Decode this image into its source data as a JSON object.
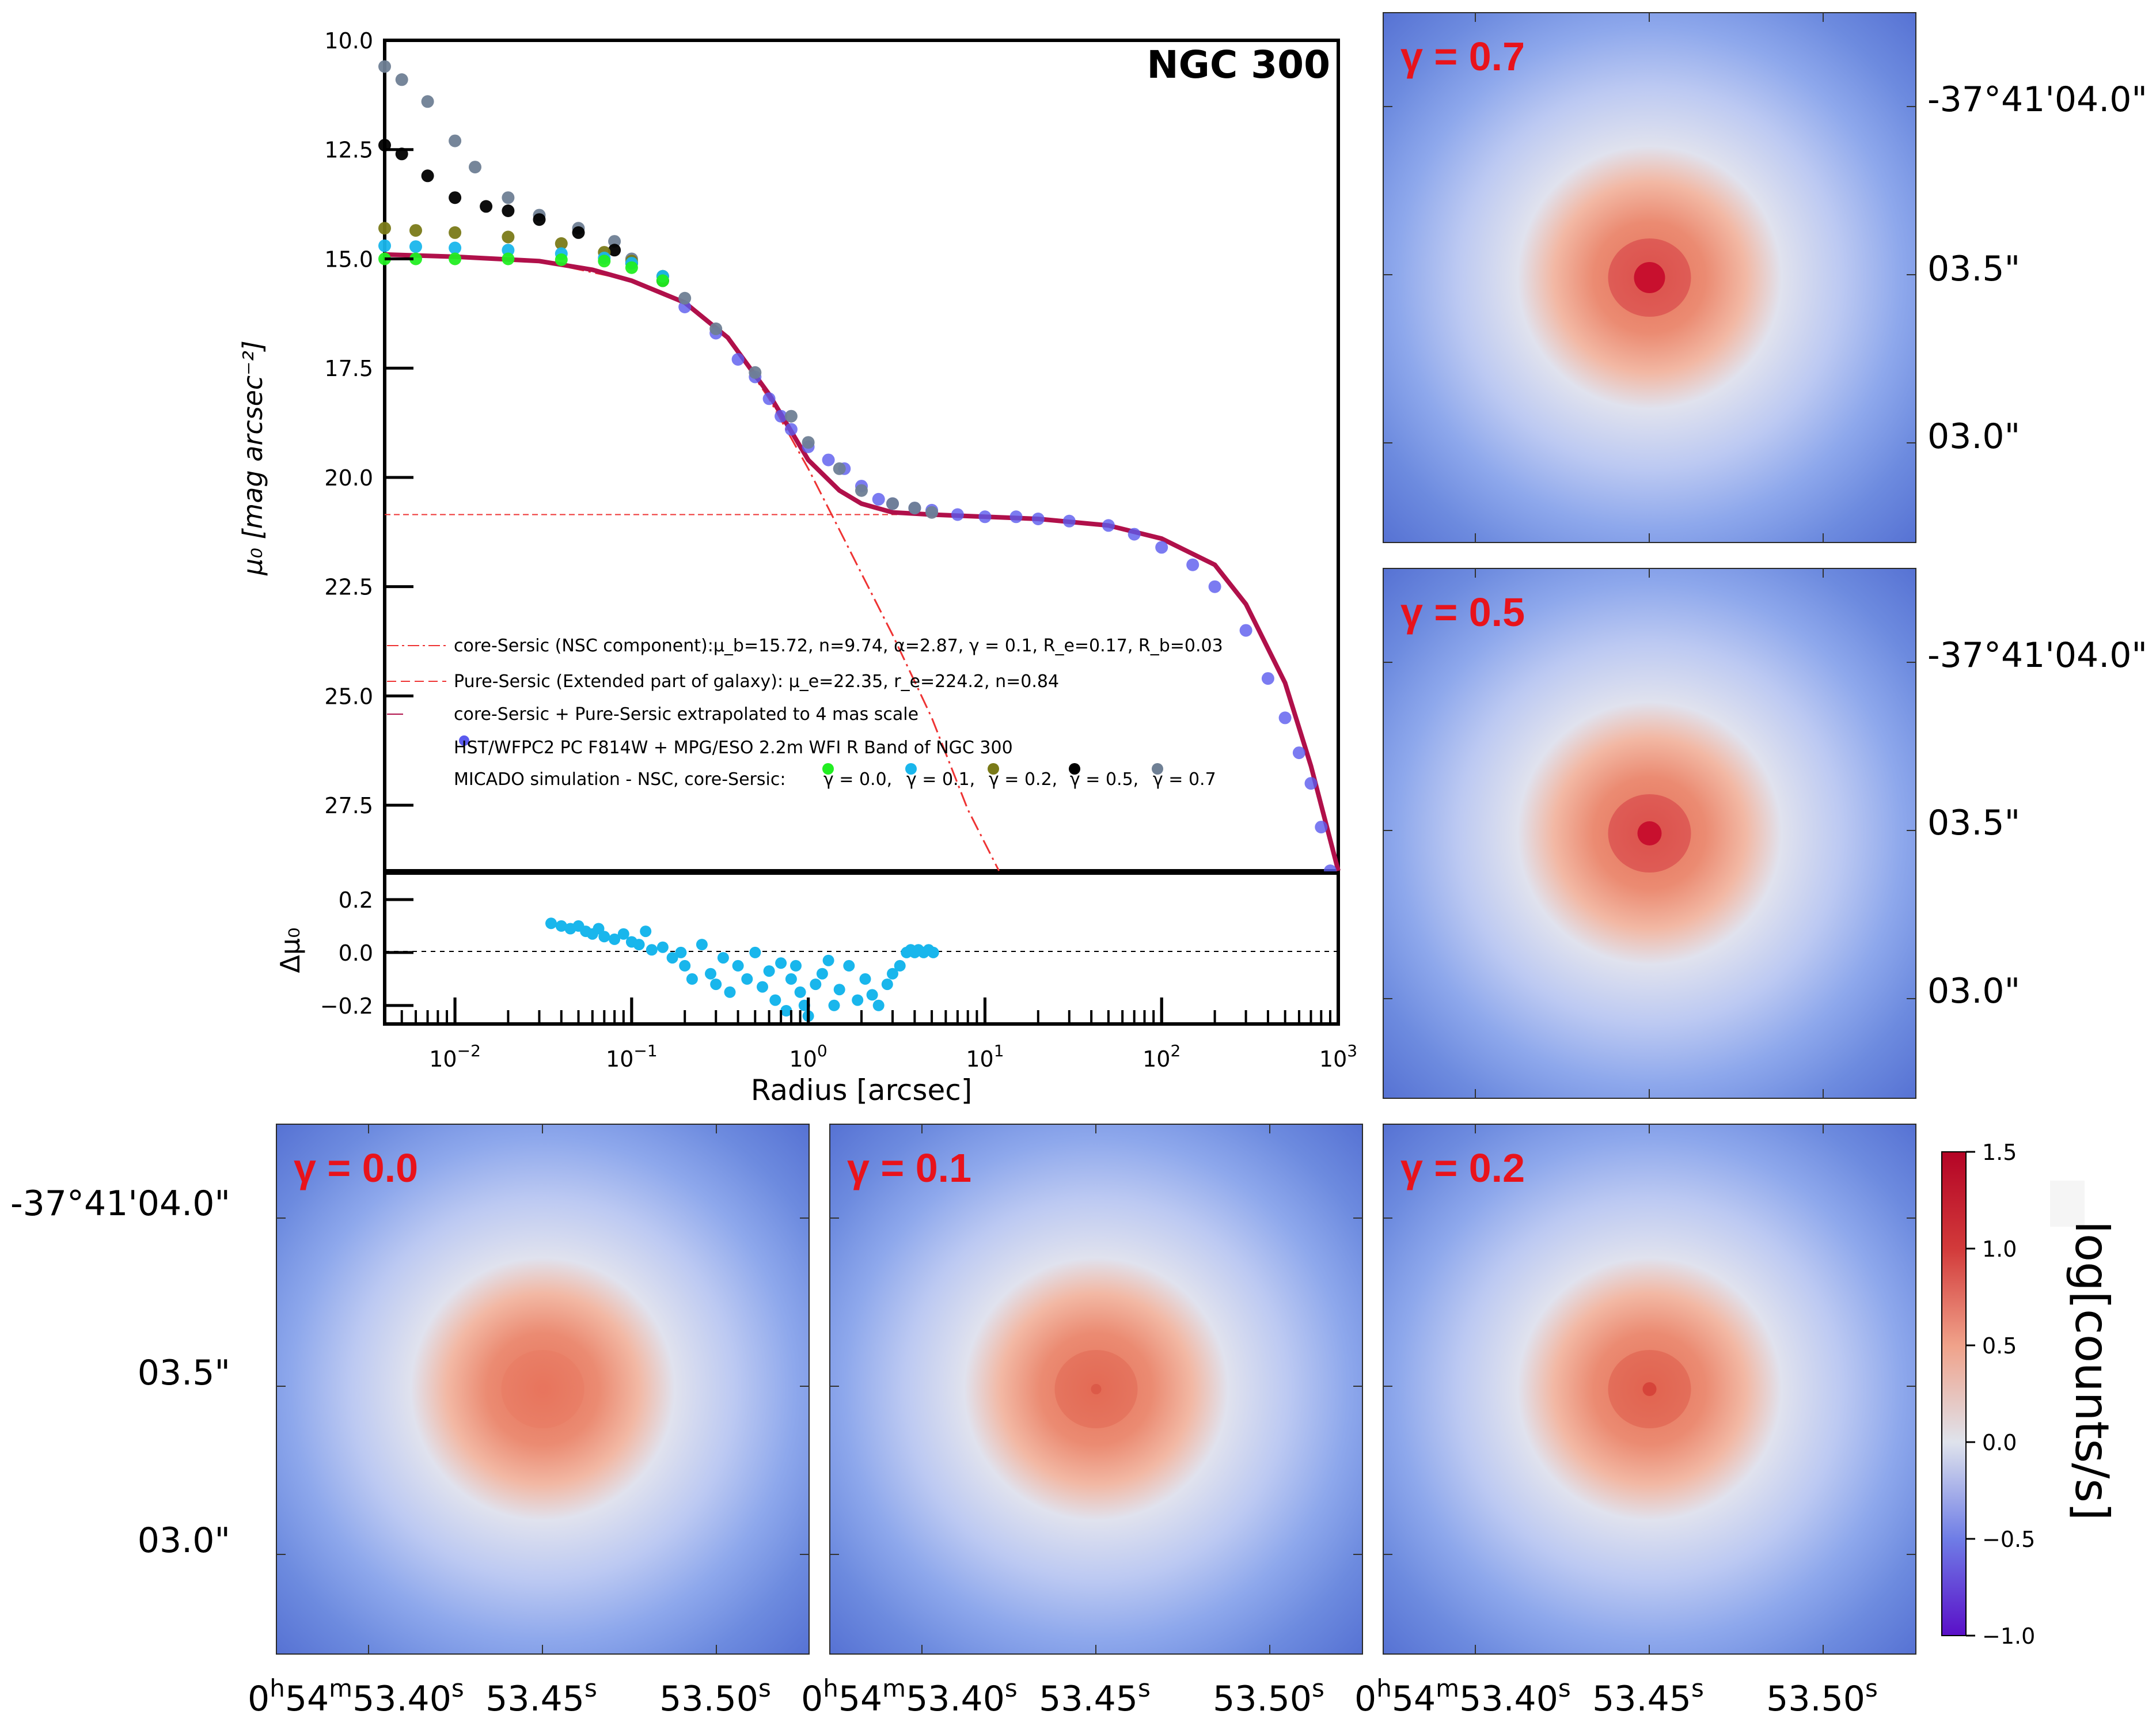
{
  "figure": {
    "galaxy_label": "NGC 300",
    "colorbar": {
      "label": "log[counts/s]",
      "ticks": [
        "1.5",
        "1.0",
        "0.5",
        "0.0",
        "−0.5",
        "−1.0"
      ],
      "colors": [
        "#5a0fc8",
        "#6f7de6",
        "#dfe3ec",
        "#f09a80",
        "#d11231",
        "#b40426"
      ]
    },
    "coords": {
      "dec_labels": [
        "-37°41'04.0\"",
        "03.5\"",
        "03.0\""
      ],
      "ra_prefix": "0",
      "ra_h": "h",
      "ra_mid": "54",
      "ra_m": "m",
      "ra_first": "53.40",
      "ra_labels": [
        "53.45",
        "53.50"
      ],
      "ra_s": "s"
    },
    "panels": [
      {
        "label": "γ = 0.7",
        "gamma": 0.7,
        "core_color": "#c8102e"
      },
      {
        "label": "γ = 0.5",
        "gamma": 0.5,
        "core_color": "#c8102e"
      },
      {
        "label": "γ = 0.0",
        "gamma": 0.0,
        "core_color": "#e8755e"
      },
      {
        "label": "γ = 0.1",
        "gamma": 0.1,
        "core_color": "#dc5a48"
      },
      {
        "label": "γ = 0.2",
        "gamma": 0.2,
        "core_color": "#d6443a"
      }
    ]
  },
  "chart_data": {
    "type": "scatter",
    "title": "NGC 300",
    "xlabel": "Radius [arcsec]",
    "ylabel": "μ₀ [mag arcsec⁻²]",
    "x_scale": "log",
    "xlim": [
      0.004,
      1000
    ],
    "ylim": [
      29,
      10
    ],
    "y_ticks": [
      "10.0",
      "12.5",
      "15.0",
      "17.5",
      "20.0",
      "22.5",
      "25.0",
      "27.5"
    ],
    "x_tick_labels": [
      {
        "base": "10",
        "exp": "−2",
        "value": 0.01
      },
      {
        "base": "10",
        "exp": "−1",
        "value": 0.1
      },
      {
        "base": "10",
        "exp": "0",
        "value": 1
      },
      {
        "base": "10",
        "exp": "1",
        "value": 10
      },
      {
        "base": "10",
        "exp": "2",
        "value": 100
      },
      {
        "base": "10",
        "exp": "3",
        "value": 1000
      }
    ],
    "model_profile": {
      "x": [
        0.004,
        0.01,
        0.03,
        0.06,
        0.1,
        0.2,
        0.35,
        0.6,
        1,
        1.5,
        2,
        3,
        5,
        10,
        20,
        50,
        100,
        200,
        300,
        500,
        700,
        1000
      ],
      "y": [
        14.9,
        14.95,
        15.05,
        15.25,
        15.5,
        16.0,
        16.8,
        18.1,
        19.6,
        20.3,
        20.6,
        20.8,
        20.85,
        20.9,
        20.95,
        21.1,
        21.4,
        22.0,
        22.9,
        24.7,
        26.6,
        29.0
      ]
    },
    "core_sersic_component": {
      "x": [
        0.004,
        0.01,
        0.03,
        0.1,
        0.2,
        0.35,
        0.6,
        1,
        1.5,
        2,
        3,
        5,
        8,
        12
      ],
      "y": [
        14.9,
        14.95,
        15.05,
        15.5,
        16.0,
        16.8,
        18.2,
        19.8,
        21.2,
        22.2,
        23.6,
        25.5,
        27.6,
        29.0
      ]
    },
    "pure_sersic_level": 20.85,
    "series": [
      {
        "name": "HST/WFPC2 PC F814W + MPG/ESO 2.2m WFI R Band of NGC 300",
        "color": "#5a5aee",
        "x": [
          0.2,
          0.3,
          0.4,
          0.5,
          0.6,
          0.7,
          0.8,
          1,
          1.3,
          1.6,
          2,
          2.5,
          3,
          4,
          5,
          7,
          10,
          15,
          20,
          30,
          50,
          70,
          100,
          150,
          200,
          300,
          400,
          500,
          600,
          700,
          800,
          900
        ],
        "y": [
          16.1,
          16.7,
          17.3,
          17.7,
          18.2,
          18.6,
          18.9,
          19.3,
          19.6,
          19.8,
          20.2,
          20.5,
          20.6,
          20.7,
          20.75,
          20.85,
          20.9,
          20.9,
          20.95,
          21.0,
          21.1,
          21.3,
          21.6,
          22.0,
          22.5,
          23.5,
          24.6,
          25.5,
          26.3,
          27.0,
          28.0,
          29.0
        ]
      },
      {
        "name": "γ = 0.0",
        "color": "#22ee22",
        "x": [
          0.004,
          0.006,
          0.01,
          0.02,
          0.04,
          0.07,
          0.1,
          0.15
        ],
        "y": [
          15.0,
          15.0,
          15.0,
          15.0,
          15.02,
          15.05,
          15.2,
          15.5
        ]
      },
      {
        "name": "γ = 0.1",
        "color": "#19b6ec",
        "x": [
          0.004,
          0.006,
          0.01,
          0.02,
          0.04,
          0.07,
          0.1,
          0.15
        ],
        "y": [
          14.7,
          14.72,
          14.75,
          14.8,
          14.88,
          14.98,
          15.1,
          15.4
        ]
      },
      {
        "name": "γ = 0.2",
        "color": "#7a7a18",
        "x": [
          0.004,
          0.006,
          0.01,
          0.02,
          0.04,
          0.07,
          0.1,
          0.15
        ],
        "y": [
          14.3,
          14.35,
          14.4,
          14.5,
          14.65,
          14.85,
          15.05,
          15.4
        ]
      },
      {
        "name": "γ = 0.5",
        "color": "#000000",
        "x": [
          0.004,
          0.005,
          0.007,
          0.01,
          0.015,
          0.02,
          0.03,
          0.05,
          0.08,
          0.1,
          0.15
        ],
        "y": [
          12.4,
          12.6,
          13.1,
          13.6,
          13.8,
          13.9,
          14.1,
          14.4,
          14.8,
          15.1,
          15.5
        ]
      },
      {
        "name": "γ = 0.7",
        "color": "#6f8095",
        "x": [
          0.004,
          0.005,
          0.007,
          0.01,
          0.013,
          0.02,
          0.03,
          0.05,
          0.08,
          0.1,
          0.15,
          0.2,
          0.3,
          0.5,
          0.8,
          1,
          1.5,
          2,
          3,
          4,
          5
        ],
        "y": [
          10.6,
          10.9,
          11.4,
          12.3,
          12.9,
          13.6,
          14.0,
          14.3,
          14.6,
          15.0,
          15.4,
          15.9,
          16.6,
          17.6,
          18.6,
          19.2,
          19.8,
          20.3,
          20.6,
          20.7,
          20.8
        ]
      }
    ],
    "legend": [
      {
        "style": "dashdot",
        "color": "#ee3333",
        "text": "core-Sersic (NSC component):μ_b=15.72, n=9.74, α=2.87, γ = 0.1, R_e=0.17, R_b=0.03"
      },
      {
        "style": "dashed",
        "color": "#ee3333",
        "text": "Pure-Sersic (Extended part of galaxy): μ_e=22.35, r_e=224.2, n=0.84"
      },
      {
        "style": "solid",
        "color": "#b0104a",
        "text": "core-Sersic + Pure-Sersic extrapolated to 4 mas scale"
      },
      {
        "style": "dot",
        "color": "#5a5aee",
        "text": "HST/WFPC2 PC F814W + MPG/ESO 2.2m WFI R Band of NGC 300"
      },
      {
        "style": "dots",
        "color": "",
        "text": "MICADO simulation - NSC, core-Sersic:"
      }
    ],
    "legend_gamma": [
      {
        "text": "γ = 0.0,",
        "color": "#22ee22"
      },
      {
        "text": "γ = 0.1,",
        "color": "#19b6ec"
      },
      {
        "text": "γ = 0.2,",
        "color": "#7a7a18"
      },
      {
        "text": "γ = 0.5,",
        "color": "#000000"
      },
      {
        "text": "γ = 0.7",
        "color": "#6f8095"
      }
    ],
    "residual": {
      "ylabel": "Δμ₀",
      "ylim": [
        -0.27,
        0.3
      ],
      "y_ticks": [
        "0.2",
        "0.0",
        "−0.2"
      ],
      "color": "#19b6ec",
      "x": [
        0.035,
        0.04,
        0.045,
        0.05,
        0.055,
        0.06,
        0.065,
        0.07,
        0.08,
        0.09,
        0.1,
        0.11,
        0.12,
        0.13,
        0.15,
        0.17,
        0.19,
        0.2,
        0.22,
        0.25,
        0.28,
        0.3,
        0.33,
        0.36,
        0.4,
        0.45,
        0.5,
        0.55,
        0.6,
        0.65,
        0.7,
        0.75,
        0.8,
        0.85,
        0.9,
        0.95,
        1.0,
        1.1,
        1.2,
        1.3,
        1.4,
        1.5,
        1.7,
        1.9,
        2.1,
        2.3,
        2.5,
        2.8,
        3.0,
        3.3,
        3.6,
        3.8,
        4.0,
        4.2,
        4.5,
        4.8,
        5.1
      ],
      "y": [
        0.11,
        0.1,
        0.09,
        0.1,
        0.08,
        0.07,
        0.09,
        0.06,
        0.05,
        0.07,
        0.04,
        0.03,
        0.08,
        0.01,
        0.02,
        -0.02,
        0.0,
        -0.05,
        -0.1,
        0.03,
        -0.08,
        -0.12,
        -0.02,
        -0.15,
        -0.05,
        -0.1,
        0.0,
        -0.13,
        -0.07,
        -0.18,
        -0.04,
        -0.22,
        -0.1,
        -0.05,
        -0.15,
        -0.2,
        -0.24,
        -0.12,
        -0.08,
        -0.03,
        -0.2,
        -0.14,
        -0.05,
        -0.18,
        -0.1,
        -0.16,
        -0.2,
        -0.12,
        -0.08,
        -0.05,
        0.0,
        0.01,
        0.0,
        0.01,
        0.0,
        0.01,
        0.0
      ]
    }
  }
}
